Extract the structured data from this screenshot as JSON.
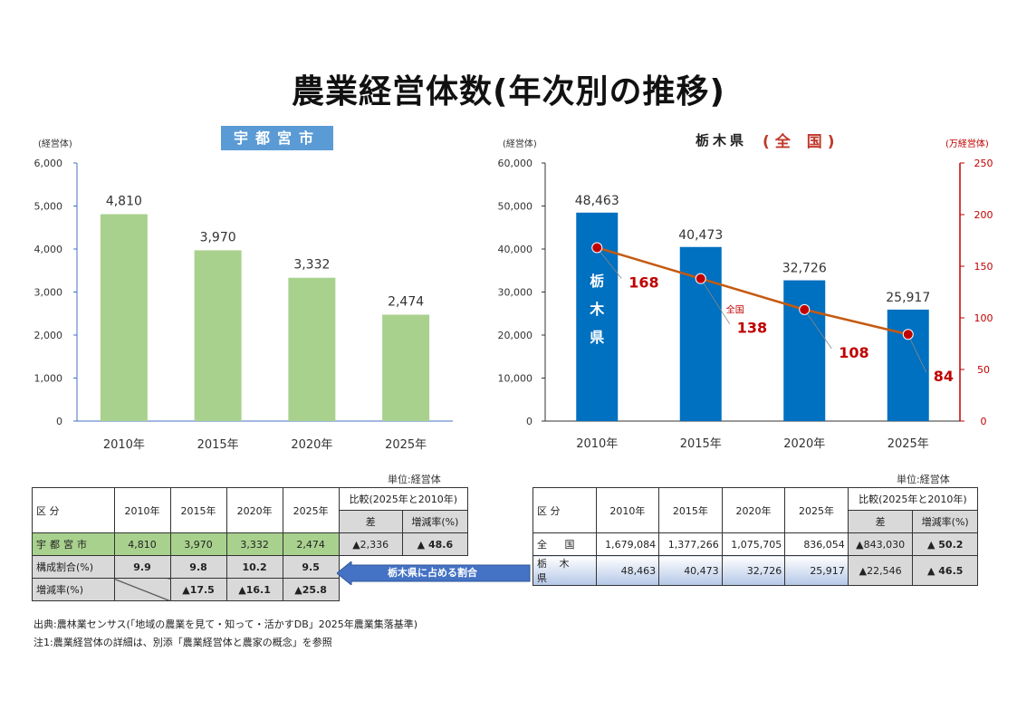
{
  "title": "農業経営体数(年次別の推移)",
  "left_chart": {
    "heading": "宇都宮市",
    "unit": "(経営体)",
    "chart_data": {
      "type": "bar",
      "categories": [
        "2010年",
        "2015年",
        "2020年",
        "2025年"
      ],
      "values": [
        4810,
        3970,
        3332,
        2474
      ],
      "value_labels": [
        "4,810",
        "3,970",
        "3,332",
        "2,474"
      ],
      "ylim": [
        0,
        6000
      ],
      "yticks": [
        "0",
        "1,000",
        "2,000",
        "3,000",
        "4,000",
        "5,000",
        "6,000"
      ],
      "ytick_values": [
        0,
        1000,
        2000,
        3000,
        4000,
        5000,
        6000
      ],
      "bar_color": "#a9d18e",
      "ylabel": "(経営体)"
    }
  },
  "right_chart": {
    "heading_a": "栃木県",
    "heading_b": "(全 国)",
    "unit_left": "(経営体)",
    "unit_right": "(万経営体)",
    "bar_inner_label": [
      "栃",
      "木",
      "県"
    ],
    "line_annotation": "全国",
    "chart_data": {
      "type": "bar",
      "categories": [
        "2010年",
        "2015年",
        "2020年",
        "2025年"
      ],
      "series": [
        {
          "name": "栃木県",
          "type": "bar",
          "axis": "left",
          "values": [
            48463,
            40473,
            32726,
            25917
          ],
          "labels": [
            "48,463",
            "40,473",
            "32,726",
            "25,917"
          ]
        },
        {
          "name": "全国",
          "type": "line",
          "axis": "right",
          "values": [
            168,
            138,
            108,
            84
          ],
          "labels": [
            "168",
            "138",
            "108",
            "84"
          ]
        }
      ],
      "ylim": [
        0,
        60000
      ],
      "yticks": [
        "0",
        "10,000",
        "20,000",
        "30,000",
        "40,000",
        "50,000",
        "60,000"
      ],
      "ytick_values": [
        0,
        10000,
        20000,
        30000,
        40000,
        50000,
        60000
      ],
      "y2lim": [
        0,
        250
      ],
      "y2ticks": [
        "0",
        "50",
        "100",
        "150",
        "200",
        "250"
      ],
      "y2tick_values": [
        0,
        50,
        100,
        150,
        200,
        250
      ],
      "bar_color": "#0070c0",
      "line_color": "#c55a11",
      "marker_color": "#c00000",
      "right_axis_color": "#c00000"
    }
  },
  "left_table": {
    "unit": "単位:経営体",
    "header": {
      "kubun": "区 分",
      "years": [
        "2010年",
        "2015年",
        "2020年",
        "2025年"
      ],
      "compare": "比較(2025年と2010年)",
      "diff": "差",
      "rate": "増減率(%)"
    },
    "row1": {
      "label": "宇都宮市",
      "values": [
        "4,810",
        "3,970",
        "3,332",
        "2,474"
      ],
      "diff": "▲2,336",
      "rate": "▲ 48.6"
    },
    "row2": {
      "label": "構成割合(%)",
      "values": [
        "9.9",
        "9.8",
        "10.2",
        "9.5"
      ]
    },
    "row3": {
      "label": "増減率(%)",
      "values": [
        "▲17.5",
        "▲16.1",
        "▲25.8"
      ]
    }
  },
  "arrow_label": "栃木県に占める割合",
  "right_table": {
    "unit": "単位:経営体",
    "header": {
      "kubun": "区 分",
      "years": [
        "2010年",
        "2015年",
        "2020年",
        "2025年"
      ],
      "compare": "比較(2025年と2010年)",
      "diff": "差",
      "rate": "増減率(%)"
    },
    "row1": {
      "label": "全 国",
      "values": [
        "1,679,084",
        "1,377,266",
        "1,075,705",
        "836,054"
      ],
      "diff": "▲843,030",
      "rate": "▲ 50.2"
    },
    "row2": {
      "label": "栃 木 県",
      "values": [
        "48,463",
        "40,473",
        "32,726",
        "25,917"
      ],
      "diff": "▲22,546",
      "rate": "▲ 46.5"
    }
  },
  "notes": {
    "source": "出典:農林業センサス(「地域の農業を見て・知って・活かすDB」2025年農業集落基準)",
    "note1": "注1:農業経営体の詳細は、別添「農業経営体と農家の概念」を参照"
  }
}
